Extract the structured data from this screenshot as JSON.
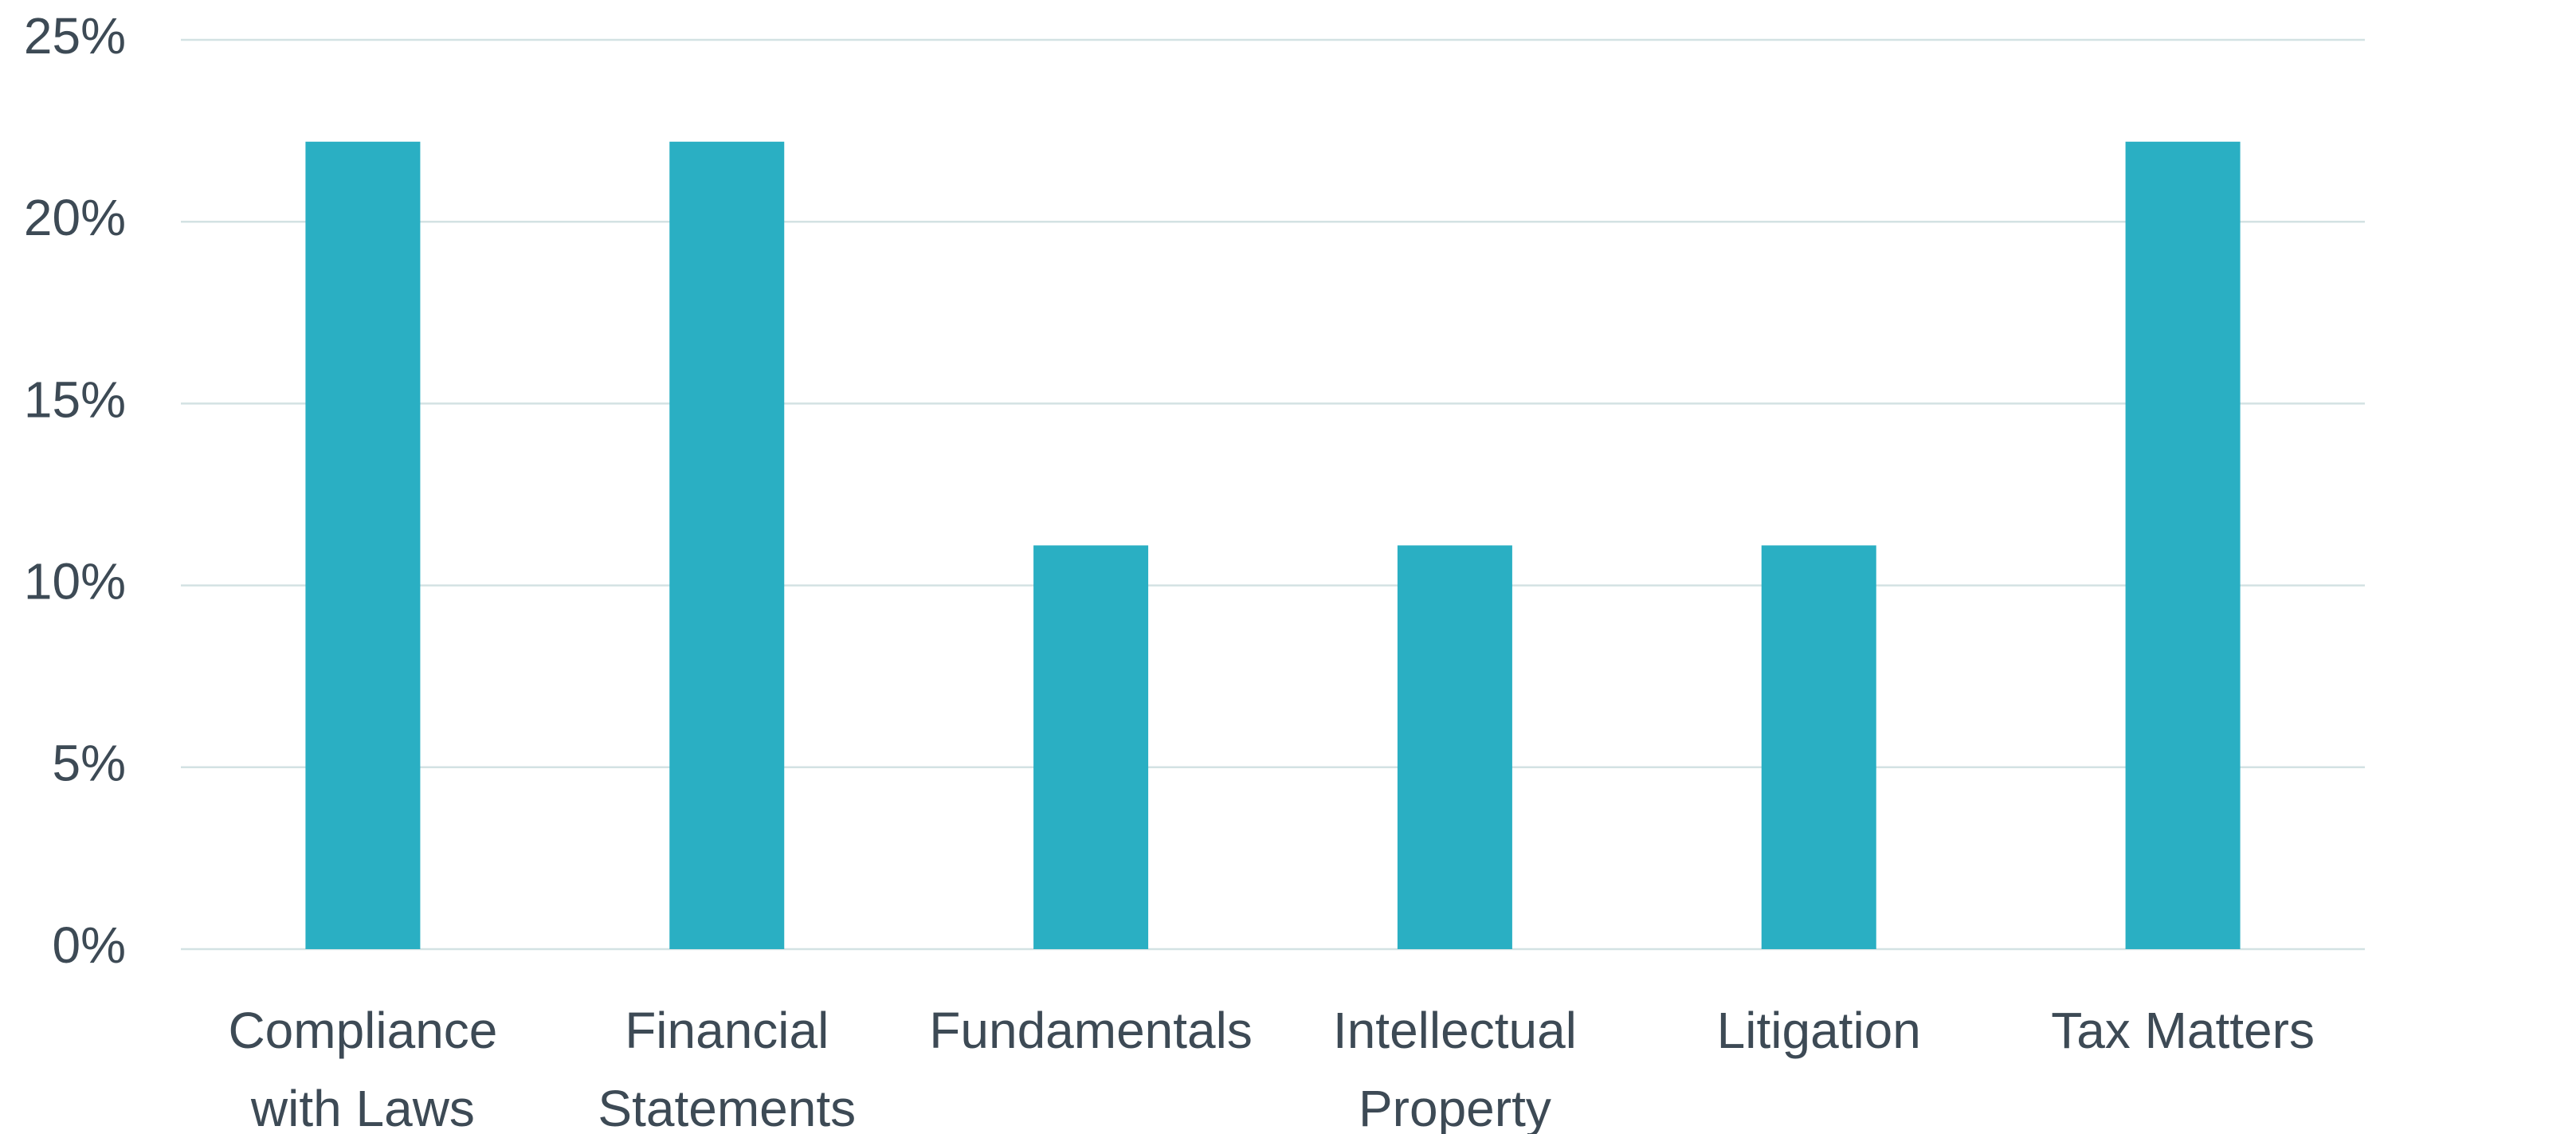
{
  "chart_data": {
    "type": "bar",
    "categories": [
      "Compliance with Laws",
      "Financial Statements",
      "Fundamentals",
      "Intellectual Property",
      "Litigation",
      "Tax Matters"
    ],
    "values": [
      22.2,
      22.2,
      11.1,
      11.1,
      11.1,
      22.2
    ],
    "color": "#2aafc3",
    "ylim": [
      0,
      25
    ],
    "yticks": [
      {
        "value": 0,
        "label": "0%"
      },
      {
        "value": 5,
        "label": "5%"
      },
      {
        "value": 10,
        "label": "10%"
      },
      {
        "value": 15,
        "label": "15%"
      },
      {
        "value": 20,
        "label": "20%"
      },
      {
        "value": 25,
        "label": "25%"
      }
    ],
    "grid": true
  }
}
